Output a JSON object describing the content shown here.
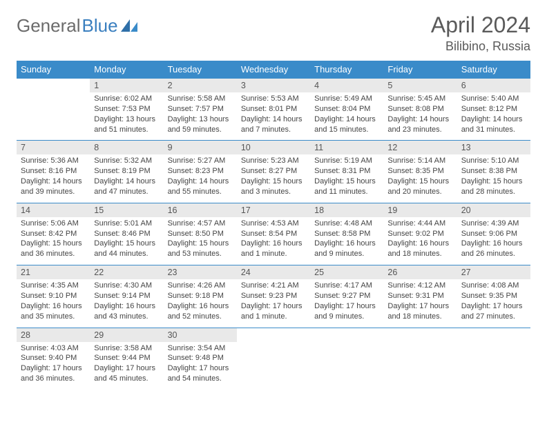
{
  "brand": {
    "word1": "General",
    "word2": "Blue"
  },
  "colors": {
    "header_bg": "#3a8bc9",
    "day_bg": "#e9e9e9",
    "border": "#3a8bc9"
  },
  "header": {
    "month": "April 2024",
    "location": "Bilibino, Russia"
  },
  "weekdays": [
    "Sunday",
    "Monday",
    "Tuesday",
    "Wednesday",
    "Thursday",
    "Friday",
    "Saturday"
  ],
  "weeks": [
    {
      "days": [
        "",
        "1",
        "2",
        "3",
        "4",
        "5",
        "6"
      ],
      "cells": [
        {
          "lines": []
        },
        {
          "lines": [
            "Sunrise: 6:02 AM",
            "Sunset: 7:53 PM",
            "Daylight: 13 hours and 51 minutes."
          ]
        },
        {
          "lines": [
            "Sunrise: 5:58 AM",
            "Sunset: 7:57 PM",
            "Daylight: 13 hours and 59 minutes."
          ]
        },
        {
          "lines": [
            "Sunrise: 5:53 AM",
            "Sunset: 8:01 PM",
            "Daylight: 14 hours and 7 minutes."
          ]
        },
        {
          "lines": [
            "Sunrise: 5:49 AM",
            "Sunset: 8:04 PM",
            "Daylight: 14 hours and 15 minutes."
          ]
        },
        {
          "lines": [
            "Sunrise: 5:45 AM",
            "Sunset: 8:08 PM",
            "Daylight: 14 hours and 23 minutes."
          ]
        },
        {
          "lines": [
            "Sunrise: 5:40 AM",
            "Sunset: 8:12 PM",
            "Daylight: 14 hours and 31 minutes."
          ]
        }
      ]
    },
    {
      "days": [
        "7",
        "8",
        "9",
        "10",
        "11",
        "12",
        "13"
      ],
      "cells": [
        {
          "lines": [
            "Sunrise: 5:36 AM",
            "Sunset: 8:16 PM",
            "Daylight: 14 hours and 39 minutes."
          ]
        },
        {
          "lines": [
            "Sunrise: 5:32 AM",
            "Sunset: 8:19 PM",
            "Daylight: 14 hours and 47 minutes."
          ]
        },
        {
          "lines": [
            "Sunrise: 5:27 AM",
            "Sunset: 8:23 PM",
            "Daylight: 14 hours and 55 minutes."
          ]
        },
        {
          "lines": [
            "Sunrise: 5:23 AM",
            "Sunset: 8:27 PM",
            "Daylight: 15 hours and 3 minutes."
          ]
        },
        {
          "lines": [
            "Sunrise: 5:19 AM",
            "Sunset: 8:31 PM",
            "Daylight: 15 hours and 11 minutes."
          ]
        },
        {
          "lines": [
            "Sunrise: 5:14 AM",
            "Sunset: 8:35 PM",
            "Daylight: 15 hours and 20 minutes."
          ]
        },
        {
          "lines": [
            "Sunrise: 5:10 AM",
            "Sunset: 8:38 PM",
            "Daylight: 15 hours and 28 minutes."
          ]
        }
      ]
    },
    {
      "days": [
        "14",
        "15",
        "16",
        "17",
        "18",
        "19",
        "20"
      ],
      "cells": [
        {
          "lines": [
            "Sunrise: 5:06 AM",
            "Sunset: 8:42 PM",
            "Daylight: 15 hours and 36 minutes."
          ]
        },
        {
          "lines": [
            "Sunrise: 5:01 AM",
            "Sunset: 8:46 PM",
            "Daylight: 15 hours and 44 minutes."
          ]
        },
        {
          "lines": [
            "Sunrise: 4:57 AM",
            "Sunset: 8:50 PM",
            "Daylight: 15 hours and 53 minutes."
          ]
        },
        {
          "lines": [
            "Sunrise: 4:53 AM",
            "Sunset: 8:54 PM",
            "Daylight: 16 hours and 1 minute."
          ]
        },
        {
          "lines": [
            "Sunrise: 4:48 AM",
            "Sunset: 8:58 PM",
            "Daylight: 16 hours and 9 minutes."
          ]
        },
        {
          "lines": [
            "Sunrise: 4:44 AM",
            "Sunset: 9:02 PM",
            "Daylight: 16 hours and 18 minutes."
          ]
        },
        {
          "lines": [
            "Sunrise: 4:39 AM",
            "Sunset: 9:06 PM",
            "Daylight: 16 hours and 26 minutes."
          ]
        }
      ]
    },
    {
      "days": [
        "21",
        "22",
        "23",
        "24",
        "25",
        "26",
        "27"
      ],
      "cells": [
        {
          "lines": [
            "Sunrise: 4:35 AM",
            "Sunset: 9:10 PM",
            "Daylight: 16 hours and 35 minutes."
          ]
        },
        {
          "lines": [
            "Sunrise: 4:30 AM",
            "Sunset: 9:14 PM",
            "Daylight: 16 hours and 43 minutes."
          ]
        },
        {
          "lines": [
            "Sunrise: 4:26 AM",
            "Sunset: 9:18 PM",
            "Daylight: 16 hours and 52 minutes."
          ]
        },
        {
          "lines": [
            "Sunrise: 4:21 AM",
            "Sunset: 9:23 PM",
            "Daylight: 17 hours and 1 minute."
          ]
        },
        {
          "lines": [
            "Sunrise: 4:17 AM",
            "Sunset: 9:27 PM",
            "Daylight: 17 hours and 9 minutes."
          ]
        },
        {
          "lines": [
            "Sunrise: 4:12 AM",
            "Sunset: 9:31 PM",
            "Daylight: 17 hours and 18 minutes."
          ]
        },
        {
          "lines": [
            "Sunrise: 4:08 AM",
            "Sunset: 9:35 PM",
            "Daylight: 17 hours and 27 minutes."
          ]
        }
      ]
    },
    {
      "days": [
        "28",
        "29",
        "30",
        "",
        "",
        "",
        ""
      ],
      "cells": [
        {
          "lines": [
            "Sunrise: 4:03 AM",
            "Sunset: 9:40 PM",
            "Daylight: 17 hours and 36 minutes."
          ]
        },
        {
          "lines": [
            "Sunrise: 3:58 AM",
            "Sunset: 9:44 PM",
            "Daylight: 17 hours and 45 minutes."
          ]
        },
        {
          "lines": [
            "Sunrise: 3:54 AM",
            "Sunset: 9:48 PM",
            "Daylight: 17 hours and 54 minutes."
          ]
        },
        {
          "lines": []
        },
        {
          "lines": []
        },
        {
          "lines": []
        },
        {
          "lines": []
        }
      ]
    }
  ]
}
